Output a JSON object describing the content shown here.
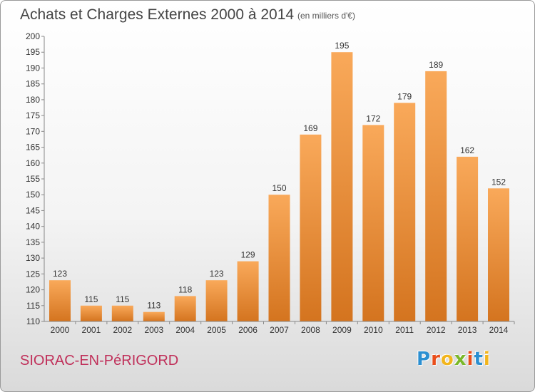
{
  "header": {
    "title": "Achats et Charges Externes 2000 à 2014",
    "subtitle": "(en milliers d'€)"
  },
  "footer": {
    "commune": "SIORAC-EN-PéRIGORD",
    "brand": "Proxiti"
  },
  "colors": {
    "bar_light": "#f9a95a",
    "bar_dark": "#d4741f",
    "commune": "#c0305a",
    "brand_letters": [
      "#2b8fd1",
      "#e94e1b",
      "#f2b51d",
      "#7ab829",
      "#e94e1b",
      "#2b8fd1",
      "#f2b51d"
    ]
  },
  "chart_data": {
    "type": "bar",
    "title": "Achats et Charges Externes 2000 à 2014",
    "subtitle": "(en milliers d'€)",
    "categories": [
      "2000",
      "2001",
      "2002",
      "2003",
      "2004",
      "2005",
      "2006",
      "2007",
      "2008",
      "2009",
      "2010",
      "2011",
      "2012",
      "2013",
      "2014"
    ],
    "values": [
      123,
      115,
      115,
      113,
      118,
      123,
      129,
      150,
      169,
      195,
      172,
      179,
      189,
      162,
      152
    ],
    "ylim": [
      110,
      200
    ],
    "ytick_step": 5,
    "grid": false,
    "data_labels": true
  }
}
